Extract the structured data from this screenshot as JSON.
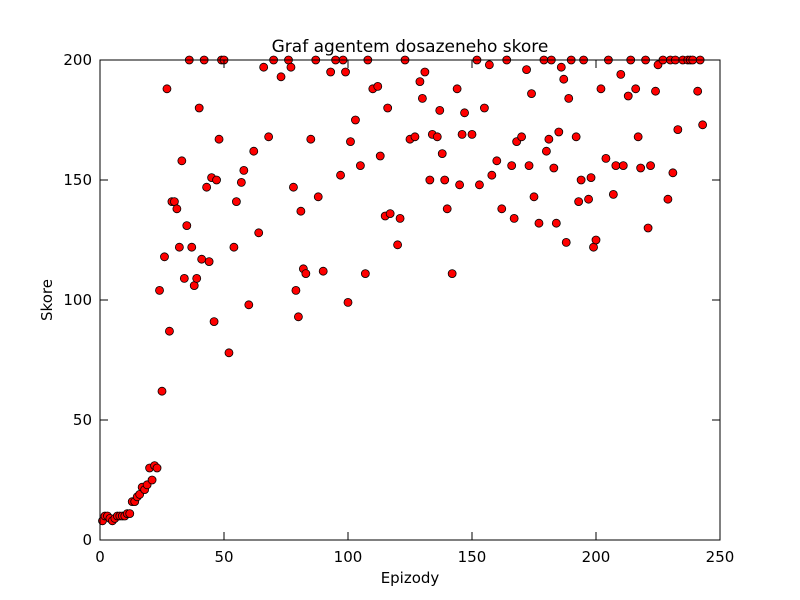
{
  "chart_data": {
    "type": "scatter",
    "title": "Graf agentem dosazeneho skore",
    "xlabel": "Epizody",
    "ylabel": "Skore",
    "xlim": [
      0,
      250
    ],
    "ylim": [
      0,
      200
    ],
    "xticks": [
      0,
      50,
      100,
      150,
      200,
      250
    ],
    "yticks": [
      0,
      50,
      100,
      150,
      200
    ],
    "grid": false,
    "marker_color": "#ff0000",
    "marker_edge_color": "#000000",
    "series": [
      {
        "x": [
          1,
          2,
          3,
          4,
          5,
          6,
          7,
          8,
          9,
          10,
          11,
          12,
          13,
          14,
          15,
          16,
          17,
          18,
          19,
          20,
          21,
          22,
          23,
          24,
          25,
          26,
          27,
          28,
          29,
          30,
          31,
          32,
          33,
          34,
          35,
          36,
          37,
          38,
          39,
          40,
          41,
          42,
          43,
          44,
          45,
          46,
          47,
          48,
          49,
          50,
          52,
          54,
          55,
          57,
          58,
          60,
          62,
          64,
          66,
          68,
          70,
          73,
          76,
          77,
          78,
          79,
          80,
          81,
          82,
          83,
          85,
          87,
          88,
          90,
          93,
          95,
          97,
          98,
          99,
          100,
          101,
          103,
          105,
          107,
          108,
          110,
          112,
          113,
          115,
          116,
          117,
          120,
          121,
          123,
          125,
          127,
          129,
          130,
          131,
          133,
          134,
          136,
          137,
          138,
          139,
          140,
          142,
          144,
          145,
          146,
          147,
          150,
          152,
          153,
          155,
          157,
          158,
          160,
          162,
          164,
          166,
          167,
          168,
          170,
          172,
          173,
          174,
          175,
          177,
          179,
          180,
          181,
          182,
          183,
          184,
          185,
          186,
          187,
          188,
          189,
          190,
          192,
          193,
          194,
          195,
          197,
          198,
          199,
          200,
          202,
          204,
          205,
          207,
          208,
          210,
          211,
          213,
          214,
          216,
          217,
          218,
          220,
          221,
          222,
          224,
          225,
          227,
          229,
          230,
          231,
          232,
          233,
          235,
          237,
          238,
          239,
          241,
          242,
          243
        ],
        "y": [
          8,
          10,
          10,
          9,
          8,
          9,
          10,
          10,
          10,
          10,
          11,
          11,
          16,
          16,
          18,
          19,
          22,
          21,
          23,
          30,
          25,
          31,
          30,
          104,
          62,
          118,
          188,
          87,
          141,
          141,
          138,
          122,
          158,
          109,
          131,
          200,
          122,
          106,
          109,
          180,
          117,
          200,
          147,
          116,
          151,
          91,
          150,
          167,
          200,
          200,
          78,
          122,
          141,
          149,
          154,
          98,
          162,
          128,
          197,
          168,
          200,
          193,
          200,
          197,
          147,
          104,
          93,
          137,
          113,
          111,
          167,
          200,
          143,
          112,
          195,
          200,
          152,
          200,
          195,
          99,
          166,
          175,
          156,
          111,
          200,
          188,
          189,
          160,
          135,
          180,
          136,
          123,
          134,
          200,
          167,
          168,
          191,
          184,
          195,
          150,
          169,
          168,
          179,
          161,
          150,
          138,
          111,
          188,
          148,
          169,
          178,
          169,
          200,
          148,
          180,
          198,
          152,
          158,
          138,
          200,
          156,
          134,
          166,
          168,
          196,
          156,
          186,
          143,
          132,
          200,
          162,
          167,
          200,
          155,
          132,
          170,
          197,
          192,
          124,
          184,
          200,
          168,
          141,
          150,
          200,
          142,
          151,
          122,
          125,
          188,
          159,
          200,
          144,
          156,
          194,
          156,
          185,
          200,
          188,
          168,
          155,
          200,
          130,
          156,
          187,
          198,
          200,
          142,
          200,
          153,
          200,
          171,
          200,
          200,
          200,
          200,
          187,
          200,
          173
        ]
      }
    ]
  }
}
